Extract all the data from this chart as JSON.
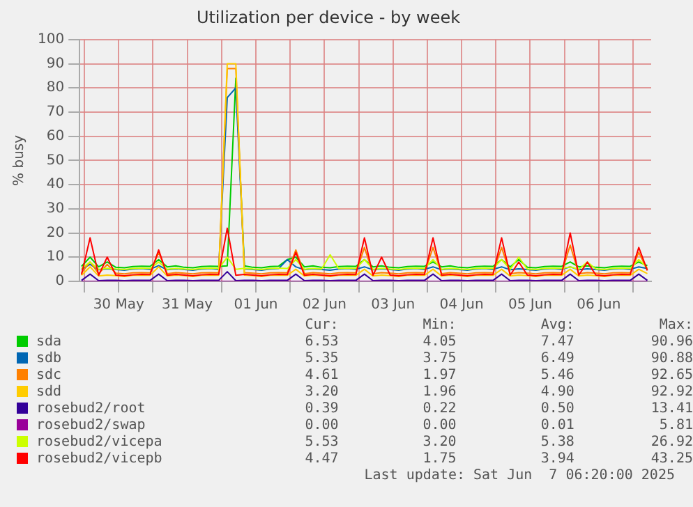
{
  "chart_data": {
    "type": "line",
    "title": "Utilization per device - by week",
    "ylabel": "% busy",
    "x": [
      "2025-05-29T23:00",
      "2025-05-30T02:00",
      "2025-05-30T05:00",
      "2025-05-30T08:00",
      "2025-05-30T11:00",
      "2025-05-30T14:00",
      "2025-05-30T17:00",
      "2025-05-30T20:00",
      "2025-05-30T23:00",
      "2025-05-31T02:00",
      "2025-05-31T05:00",
      "2025-05-31T08:00",
      "2025-05-31T11:00",
      "2025-05-31T14:00",
      "2025-05-31T17:00",
      "2025-05-31T20:00",
      "2025-05-31T23:00",
      "2025-06-01T02:00",
      "2025-06-01T05:00",
      "2025-06-01T08:00",
      "2025-06-01T11:00",
      "2025-06-01T14:00",
      "2025-06-01T17:00",
      "2025-06-01T20:00",
      "2025-06-01T23:00",
      "2025-06-02T02:00",
      "2025-06-02T05:00",
      "2025-06-02T08:00",
      "2025-06-02T11:00",
      "2025-06-02T14:00",
      "2025-06-02T17:00",
      "2025-06-02T20:00",
      "2025-06-02T23:00",
      "2025-06-03T02:00",
      "2025-06-03T05:00",
      "2025-06-03T08:00",
      "2025-06-03T11:00",
      "2025-06-03T14:00",
      "2025-06-03T17:00",
      "2025-06-03T20:00",
      "2025-06-03T23:00",
      "2025-06-04T02:00",
      "2025-06-04T05:00",
      "2025-06-04T08:00",
      "2025-06-04T11:00",
      "2025-06-04T14:00",
      "2025-06-04T17:00",
      "2025-06-04T20:00",
      "2025-06-04T23:00",
      "2025-06-05T02:00",
      "2025-06-05T05:00",
      "2025-06-05T08:00",
      "2025-06-05T11:00",
      "2025-06-05T14:00",
      "2025-06-05T17:00",
      "2025-06-05T20:00",
      "2025-06-05T23:00",
      "2025-06-06T02:00",
      "2025-06-06T05:00",
      "2025-06-06T08:00",
      "2025-06-06T11:00",
      "2025-06-06T14:00",
      "2025-06-06T17:00",
      "2025-06-06T20:00",
      "2025-06-06T23:00",
      "2025-06-07T02:00",
      "2025-06-07T05:00"
    ],
    "series": [
      {
        "name": "sda",
        "color": "#00cc00",
        "values": [
          6.2,
          10,
          6.0,
          8,
          5.8,
          5.6,
          6.1,
          6.3,
          6.2,
          9,
          6.0,
          6.4,
          5.8,
          5.6,
          6.1,
          6.3,
          6.2,
          6.4,
          84,
          6.4,
          5.8,
          5.6,
          6.1,
          6.3,
          9,
          10,
          6.0,
          6.4,
          5.8,
          5.6,
          6.1,
          6.3,
          6.2,
          9,
          6.0,
          6.4,
          5.8,
          5.6,
          6.1,
          6.3,
          6.2,
          8,
          6.0,
          6.4,
          5.8,
          5.6,
          6.1,
          6.3,
          6.2,
          9,
          6.0,
          9,
          5.8,
          5.6,
          6.1,
          6.3,
          6.2,
          8,
          6.0,
          6.4,
          5.8,
          5.6,
          6.1,
          6.3,
          6.2,
          8,
          6.5
        ]
      },
      {
        "name": "sdb",
        "color": "#0066b3",
        "values": [
          5.0,
          7,
          4.8,
          5.2,
          4.9,
          4.6,
          5.1,
          5.3,
          5.0,
          6.5,
          4.8,
          5.2,
          4.9,
          4.6,
          5.1,
          5.3,
          5.0,
          76,
          80,
          5.2,
          4.9,
          4.6,
          5.1,
          5.3,
          9,
          6,
          4.8,
          5.2,
          4.9,
          4.6,
          5.1,
          5.3,
          5.0,
          6,
          4.8,
          5.2,
          4.9,
          4.6,
          5.1,
          5.3,
          5.0,
          6,
          4.8,
          5.2,
          4.9,
          4.6,
          5.1,
          5.3,
          5.0,
          6,
          4.8,
          5.2,
          4.9,
          4.6,
          5.1,
          5.3,
          5.0,
          6,
          4.8,
          5.2,
          4.9,
          4.6,
          5.1,
          5.3,
          5.0,
          6,
          5.3
        ]
      },
      {
        "name": "sdc",
        "color": "#ff8000",
        "values": [
          3.5,
          8,
          3.2,
          7,
          3.4,
          3.1,
          3.5,
          3.6,
          3.5,
          12,
          3.2,
          3.6,
          3.4,
          3.1,
          3.5,
          3.6,
          3.5,
          88,
          88,
          3.6,
          3.4,
          3.1,
          3.5,
          3.6,
          3.5,
          13,
          3.2,
          3.6,
          3.4,
          3.1,
          3.5,
          3.6,
          3.5,
          14,
          3.2,
          3.6,
          3.4,
          3.1,
          3.5,
          3.6,
          3.5,
          14,
          3.2,
          3.6,
          3.4,
          3.1,
          3.5,
          3.6,
          3.5,
          14,
          3.2,
          3.6,
          3.4,
          3.1,
          3.5,
          3.6,
          3.5,
          15,
          3.2,
          3.6,
          3.4,
          3.1,
          3.5,
          3.6,
          3.5,
          12,
          4.6
        ]
      },
      {
        "name": "sdd",
        "color": "#ffcc00",
        "values": [
          2.5,
          6,
          2.2,
          2.6,
          2.4,
          2.0,
          2.5,
          2.6,
          2.5,
          6,
          2.2,
          2.6,
          2.4,
          2.0,
          2.5,
          2.6,
          2.5,
          90,
          90,
          2.6,
          2.4,
          2.0,
          2.5,
          2.6,
          2.5,
          5,
          2.2,
          2.6,
          2.4,
          2.0,
          2.5,
          2.6,
          2.5,
          5,
          2.2,
          2.6,
          2.4,
          2.0,
          2.5,
          2.6,
          2.5,
          5,
          2.2,
          2.6,
          2.4,
          2.0,
          2.5,
          2.6,
          2.5,
          5,
          2.2,
          2.6,
          2.4,
          2.0,
          2.5,
          2.6,
          2.5,
          5,
          2.2,
          2.6,
          2.4,
          2.0,
          2.5,
          2.6,
          2.5,
          5,
          3.2
        ]
      },
      {
        "name": "rosebud2/root",
        "color": "#330099",
        "values": [
          0.4,
          3,
          0.3,
          0.4,
          0.4,
          0.3,
          0.4,
          0.4,
          0.4,
          3,
          0.3,
          0.4,
          0.4,
          0.3,
          0.4,
          0.4,
          0.4,
          4,
          0.3,
          0.4,
          0.4,
          0.3,
          0.4,
          0.4,
          0.4,
          3,
          0.3,
          0.4,
          0.4,
          0.3,
          0.4,
          0.4,
          0.4,
          3,
          0.3,
          0.4,
          0.4,
          0.3,
          0.4,
          0.4,
          0.4,
          3,
          0.3,
          0.4,
          0.4,
          0.3,
          0.4,
          0.4,
          0.4,
          3,
          0.3,
          0.4,
          0.4,
          0.3,
          0.4,
          0.4,
          0.4,
          3,
          0.3,
          0.4,
          0.4,
          0.3,
          0.4,
          0.4,
          0.4,
          3,
          0.4
        ]
      },
      {
        "name": "rosebud2/swap",
        "color": "#990099",
        "values": [
          0,
          0,
          0,
          0,
          0,
          0,
          0,
          0,
          0,
          0,
          0,
          0,
          0,
          0,
          0,
          0,
          0,
          0,
          0,
          0,
          0,
          0,
          0,
          0,
          0,
          0,
          0,
          0,
          0,
          0,
          0,
          0,
          0,
          0,
          0,
          0,
          0,
          0,
          0,
          0,
          0,
          0,
          0,
          0,
          0,
          0,
          0,
          0,
          0,
          0,
          0,
          0,
          0,
          0,
          0,
          0,
          0,
          0,
          0,
          0,
          0,
          0,
          0,
          0,
          0,
          0,
          0
        ]
      },
      {
        "name": "rosebud2/vicepa",
        "color": "#ccff00",
        "values": [
          5.3,
          8,
          5.0,
          5.4,
          5.1,
          4.9,
          5.3,
          5.5,
          5.3,
          8,
          5.0,
          5.4,
          5.1,
          4.9,
          5.3,
          5.5,
          5.3,
          10,
          5.0,
          5.4,
          5.1,
          4.9,
          5.3,
          5.5,
          5.3,
          9,
          5.0,
          5.4,
          5.1,
          11,
          5.3,
          5.5,
          5.3,
          9,
          5.0,
          5.4,
          5.1,
          4.9,
          5.3,
          5.5,
          5.3,
          9,
          5.0,
          5.4,
          5.1,
          4.9,
          5.3,
          5.5,
          5.3,
          9,
          5.0,
          10,
          5.1,
          4.9,
          5.3,
          5.5,
          5.3,
          6,
          5.0,
          8,
          5.1,
          4.9,
          5.3,
          5.5,
          5.3,
          9,
          5.5
        ]
      },
      {
        "name": "rosebud2/vicepb",
        "color": "#ff0000",
        "values": [
          2.8,
          18,
          2.5,
          10,
          2.6,
          2.3,
          2.7,
          2.9,
          2.8,
          13,
          2.5,
          2.9,
          2.6,
          2.3,
          2.7,
          2.9,
          2.8,
          22,
          2.5,
          2.9,
          2.6,
          2.3,
          2.7,
          2.9,
          2.8,
          12,
          2.5,
          2.9,
          2.6,
          2.3,
          2.7,
          2.9,
          2.8,
          18,
          2.5,
          10,
          2.6,
          2.3,
          2.7,
          2.9,
          2.8,
          18,
          2.5,
          2.9,
          2.6,
          2.3,
          2.7,
          2.9,
          2.8,
          18,
          2.5,
          8,
          2.6,
          2.3,
          2.7,
          2.9,
          2.8,
          20,
          2.5,
          8,
          2.6,
          2.3,
          2.7,
          2.9,
          2.8,
          14,
          4.5
        ]
      }
    ],
    "xlim": [
      "2025-05-29T22:20",
      "2025-06-07T06:20"
    ],
    "xticks": [
      {
        "value": "2025-05-30T00:00",
        "label": null
      },
      {
        "value": "2025-05-30T12:00",
        "label": "30 May"
      },
      {
        "value": "2025-05-31T00:00",
        "label": null
      },
      {
        "value": "2025-05-31T12:00",
        "label": "31 May"
      },
      {
        "value": "2025-06-01T00:00",
        "label": null
      },
      {
        "value": "2025-06-01T12:00",
        "label": "01 Jun"
      },
      {
        "value": "2025-06-02T00:00",
        "label": null
      },
      {
        "value": "2025-06-02T12:00",
        "label": "02 Jun"
      },
      {
        "value": "2025-06-03T00:00",
        "label": null
      },
      {
        "value": "2025-06-03T12:00",
        "label": "03 Jun"
      },
      {
        "value": "2025-06-04T00:00",
        "label": null
      },
      {
        "value": "2025-06-04T12:00",
        "label": "04 Jun"
      },
      {
        "value": "2025-06-05T00:00",
        "label": null
      },
      {
        "value": "2025-06-05T12:00",
        "label": "05 Jun"
      },
      {
        "value": "2025-06-06T00:00",
        "label": null
      },
      {
        "value": "2025-06-06T12:00",
        "label": "06 Jun"
      },
      {
        "value": "2025-06-07T00:00",
        "label": null
      }
    ],
    "ylim": [
      0,
      100
    ],
    "yticks": [
      0,
      10,
      20,
      30,
      40,
      50,
      60,
      70,
      80,
      90,
      100
    ],
    "grid": true,
    "legend": "bottom",
    "annotations": [
      "Cur:",
      "Min:",
      "Avg:",
      "Max:",
      "6.53",
      "4.05",
      "7.47",
      "90.96",
      "5.35",
      "3.75",
      "6.49",
      "90.88",
      "4.61",
      "1.97",
      "5.46",
      "92.65",
      "3.20",
      "1.96",
      "4.90",
      "92.92",
      "0.39",
      "0.22",
      "0.50",
      "13.41",
      "0.00",
      "0.00",
      "0.01",
      "5.81",
      "5.53",
      "3.20",
      "5.38",
      "26.92",
      "4.47",
      "1.75",
      "3.94",
      "43.25",
      "Last update: Sat Jun  7 06:20:00 2025"
    ]
  }
}
